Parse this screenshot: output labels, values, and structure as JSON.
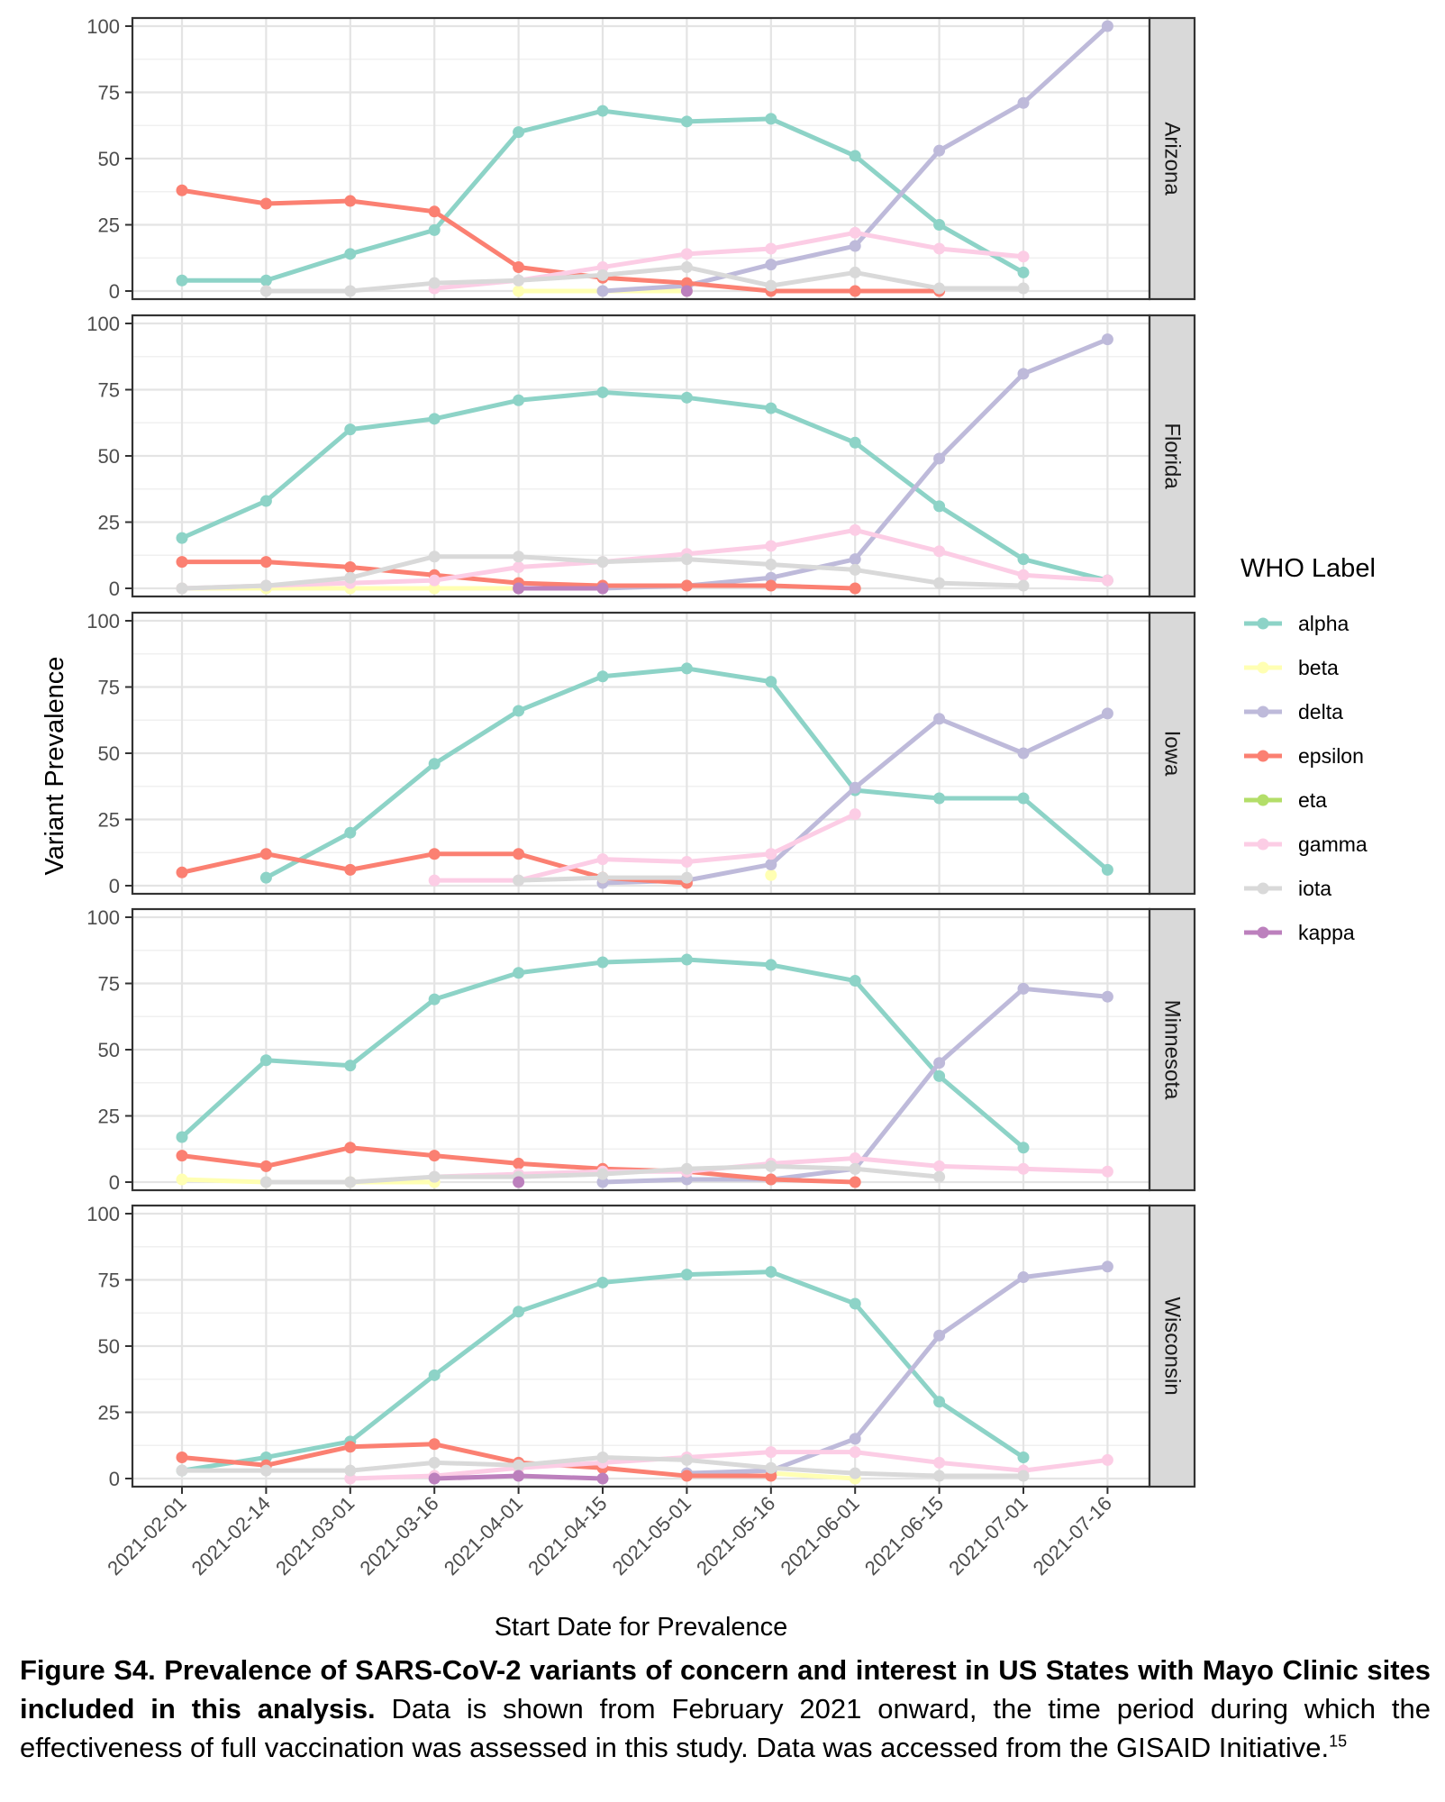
{
  "chart_data": {
    "type": "line",
    "facet_by": "state",
    "xlabel": "Start Date for Prevalence",
    "ylabel": "Variant Prevalence",
    "ylim": [
      0,
      100
    ],
    "y_ticks": [
      "0",
      "25",
      "50",
      "75",
      "100"
    ],
    "x": [
      "2021-02-01",
      "2021-02-14",
      "2021-03-01",
      "2021-03-16",
      "2021-04-01",
      "2021-04-15",
      "2021-05-01",
      "2021-05-16",
      "2021-06-01",
      "2021-06-15",
      "2021-07-01",
      "2021-07-16"
    ],
    "grid": true,
    "legend": {
      "title": "WHO Label",
      "position": "right",
      "entries": [
        {
          "name": "alpha",
          "color": "#8DD3C7"
        },
        {
          "name": "beta",
          "color": "#FFFFB3"
        },
        {
          "name": "delta",
          "color": "#BEBADA"
        },
        {
          "name": "epsilon",
          "color": "#FB8072"
        },
        {
          "name": "eta",
          "color": "#B3DE69"
        },
        {
          "name": "gamma",
          "color": "#FCCDE5"
        },
        {
          "name": "iota",
          "color": "#D9D9D9"
        },
        {
          "name": "kappa",
          "color": "#BC80BD"
        }
      ]
    },
    "panels": [
      {
        "label": "Arizona",
        "series": [
          {
            "name": "alpha",
            "values": [
              4,
              4,
              14,
              23,
              60,
              68,
              64,
              65,
              51,
              25,
              7,
              null
            ]
          },
          {
            "name": "beta",
            "values": [
              null,
              null,
              null,
              null,
              0,
              0,
              0,
              null,
              null,
              null,
              null,
              null
            ]
          },
          {
            "name": "delta",
            "values": [
              null,
              null,
              null,
              null,
              null,
              0,
              2,
              10,
              17,
              53,
              71,
              100
            ]
          },
          {
            "name": "epsilon",
            "values": [
              38,
              33,
              34,
              30,
              9,
              5,
              3,
              0,
              0,
              0,
              null,
              null
            ]
          },
          {
            "name": "gamma",
            "values": [
              null,
              null,
              null,
              1,
              4,
              9,
              14,
              16,
              22,
              16,
              13,
              null
            ]
          },
          {
            "name": "iota",
            "values": [
              null,
              0,
              0,
              3,
              4,
              6,
              9,
              2,
              7,
              1,
              1,
              null
            ]
          },
          {
            "name": "kappa",
            "values": [
              null,
              null,
              null,
              null,
              null,
              null,
              0,
              null,
              null,
              null,
              null,
              null
            ]
          }
        ]
      },
      {
        "label": "Florida",
        "series": [
          {
            "name": "alpha",
            "values": [
              19,
              33,
              60,
              64,
              71,
              74,
              72,
              68,
              55,
              31,
              11,
              3
            ]
          },
          {
            "name": "beta",
            "values": [
              0,
              0,
              0,
              0,
              0,
              null,
              null,
              null,
              null,
              null,
              null,
              null
            ]
          },
          {
            "name": "delta",
            "values": [
              null,
              null,
              null,
              null,
              null,
              0,
              1,
              4,
              11,
              49,
              81,
              94
            ]
          },
          {
            "name": "epsilon",
            "values": [
              10,
              10,
              8,
              5,
              2,
              1,
              1,
              1,
              0,
              null,
              null,
              null
            ]
          },
          {
            "name": "gamma",
            "values": [
              0,
              1,
              2,
              3,
              8,
              10,
              13,
              16,
              22,
              14,
              5,
              3
            ]
          },
          {
            "name": "iota",
            "values": [
              0,
              1,
              4,
              12,
              12,
              10,
              11,
              9,
              7,
              2,
              1,
              null
            ]
          },
          {
            "name": "kappa",
            "values": [
              null,
              null,
              null,
              null,
              0,
              0,
              null,
              null,
              null,
              null,
              null,
              null
            ]
          }
        ]
      },
      {
        "label": "Iowa",
        "series": [
          {
            "name": "alpha",
            "values": [
              null,
              3,
              20,
              46,
              66,
              79,
              82,
              77,
              36,
              33,
              33,
              6
            ]
          },
          {
            "name": "beta",
            "values": [
              null,
              null,
              null,
              null,
              null,
              null,
              null,
              4,
              null,
              null,
              null,
              null
            ]
          },
          {
            "name": "delta",
            "values": [
              null,
              null,
              null,
              null,
              null,
              1,
              2,
              8,
              37,
              63,
              50,
              65
            ]
          },
          {
            "name": "epsilon",
            "values": [
              5,
              12,
              6,
              12,
              12,
              3,
              1,
              null,
              null,
              null,
              null,
              null
            ]
          },
          {
            "name": "gamma",
            "values": [
              null,
              null,
              null,
              2,
              2,
              10,
              9,
              12,
              27,
              null,
              null,
              null
            ]
          },
          {
            "name": "iota",
            "values": [
              null,
              null,
              null,
              null,
              2,
              3,
              3,
              null,
              null,
              null,
              null,
              null
            ]
          }
        ]
      },
      {
        "label": "Minnesota",
        "series": [
          {
            "name": "alpha",
            "values": [
              17,
              46,
              44,
              69,
              79,
              83,
              84,
              82,
              76,
              40,
              13,
              null
            ]
          },
          {
            "name": "beta",
            "values": [
              1,
              0,
              0,
              0,
              null,
              null,
              null,
              null,
              null,
              null,
              null,
              null
            ]
          },
          {
            "name": "delta",
            "values": [
              null,
              null,
              null,
              null,
              null,
              0,
              1,
              1,
              5,
              45,
              73,
              70
            ]
          },
          {
            "name": "epsilon",
            "values": [
              10,
              6,
              13,
              10,
              7,
              5,
              4,
              1,
              0,
              null,
              null,
              null
            ]
          },
          {
            "name": "gamma",
            "values": [
              null,
              null,
              null,
              2,
              3,
              4,
              4,
              7,
              9,
              6,
              5,
              4
            ]
          },
          {
            "name": "iota",
            "values": [
              null,
              0,
              0,
              2,
              2,
              3,
              5,
              6,
              5,
              2,
              null,
              null
            ]
          },
          {
            "name": "kappa",
            "values": [
              null,
              null,
              null,
              null,
              0,
              null,
              null,
              null,
              null,
              null,
              null,
              null
            ]
          }
        ]
      },
      {
        "label": "Wisconsin",
        "series": [
          {
            "name": "alpha",
            "values": [
              3,
              8,
              14,
              39,
              63,
              74,
              77,
              78,
              66,
              29,
              8,
              null
            ]
          },
          {
            "name": "beta",
            "values": [
              null,
              null,
              null,
              null,
              null,
              null,
              null,
              2,
              0,
              null,
              null,
              null
            ]
          },
          {
            "name": "delta",
            "values": [
              null,
              null,
              null,
              null,
              null,
              null,
              2,
              3,
              15,
              54,
              76,
              80
            ]
          },
          {
            "name": "epsilon",
            "values": [
              8,
              5,
              12,
              13,
              6,
              4,
              1,
              1,
              null,
              null,
              null,
              null
            ]
          },
          {
            "name": "gamma",
            "values": [
              null,
              null,
              0,
              1,
              4,
              6,
              8,
              10,
              10,
              6,
              3,
              7
            ]
          },
          {
            "name": "iota",
            "values": [
              3,
              3,
              3,
              6,
              5,
              8,
              7,
              4,
              2,
              1,
              1,
              null
            ]
          },
          {
            "name": "kappa",
            "values": [
              null,
              null,
              null,
              0,
              1,
              0,
              null,
              null,
              null,
              null,
              null,
              null
            ]
          }
        ]
      }
    ]
  },
  "caption": {
    "bold": "Figure S4. Prevalence of SARS-CoV-2 variants of concern and interest in US States with Mayo Clinic sites included in this analysis.",
    "text": " Data is shown from February 2021 onward, the time period during which the effectiveness of full vaccination was assessed in this study. Data was accessed from the GISAID Initiative.",
    "superscript": "15"
  }
}
